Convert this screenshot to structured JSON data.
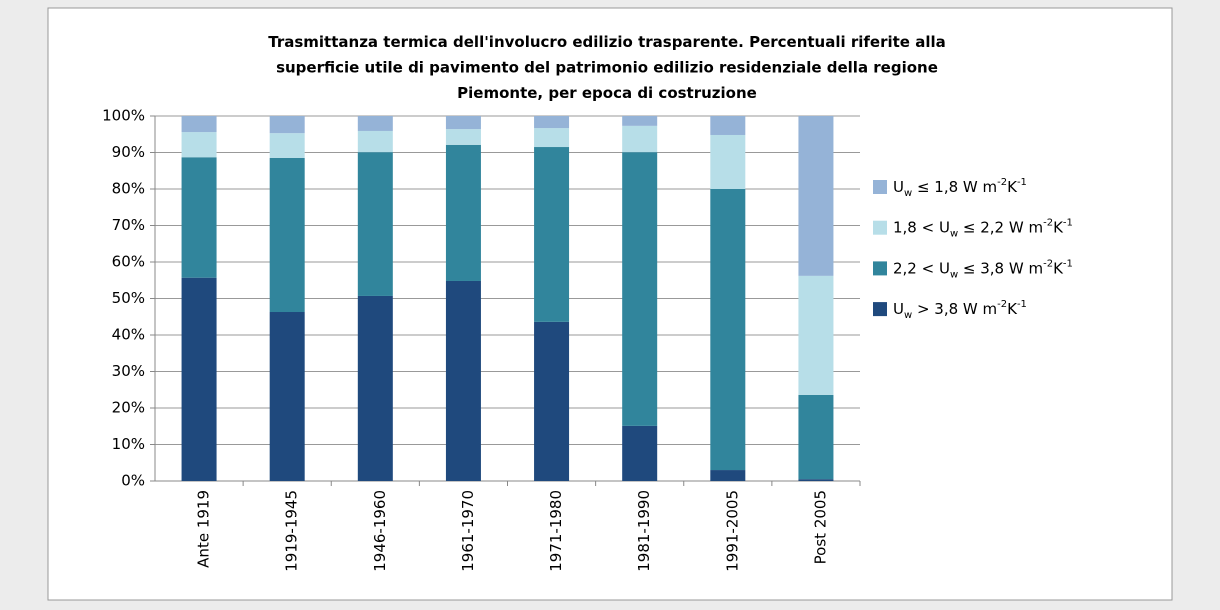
{
  "chart_data": {
    "type": "stacked_bar",
    "title": "Trasmittanza termica dell'involucro edilizio trasparente. Percentuali riferite alla superficie utile di pavimento del patrimonio edilizio residenziale della regione Piemonte, per epoca di costruzione",
    "categories": [
      "Ante 1919",
      "1919-1945",
      "1946-1960",
      "1961-1970",
      "1971-1980",
      "1981-1990",
      "1991-2005",
      "Post 2005"
    ],
    "series": [
      {
        "name": "Uw > 3,8 W m-2K-1",
        "color": "#1f497d",
        "values": [
          55.7,
          46.3,
          50.7,
          54.8,
          43.6,
          15.1,
          3.0,
          0.5
        ]
      },
      {
        "name": "2,2 < Uw ≤ 3,8 W m-2K-1",
        "color": "#31859c",
        "values": [
          33.0,
          42.2,
          39.4,
          37.3,
          47.9,
          75.0,
          77.0,
          23.1
        ]
      },
      {
        "name": "1,8 < Uw ≤ 2,2 W m-2K-1",
        "color": "#b7dee8",
        "values": [
          6.9,
          6.8,
          5.8,
          4.3,
          5.2,
          7.2,
          14.8,
          32.6
        ]
      },
      {
        "name": "Uw ≤ 1,8 W m-2K-1",
        "color": "#95b3d7",
        "values": [
          4.4,
          4.7,
          4.1,
          3.6,
          3.3,
          2.7,
          5.2,
          43.8
        ]
      }
    ],
    "ylim": [
      0,
      100
    ],
    "yticks": [
      {
        "value": 0,
        "label": "0%"
      },
      {
        "value": 10,
        "label": "10%"
      },
      {
        "value": 20,
        "label": "20%"
      },
      {
        "value": 30,
        "label": "30%"
      },
      {
        "value": 40,
        "label": "40%"
      },
      {
        "value": 50,
        "label": "50%"
      },
      {
        "value": 60,
        "label": "60%"
      },
      {
        "value": 70,
        "label": "70%"
      },
      {
        "value": 80,
        "label": "80%"
      },
      {
        "value": 90,
        "label": "90%"
      },
      {
        "value": 100,
        "label": "100%"
      }
    ],
    "grid": true,
    "legend": "right"
  }
}
